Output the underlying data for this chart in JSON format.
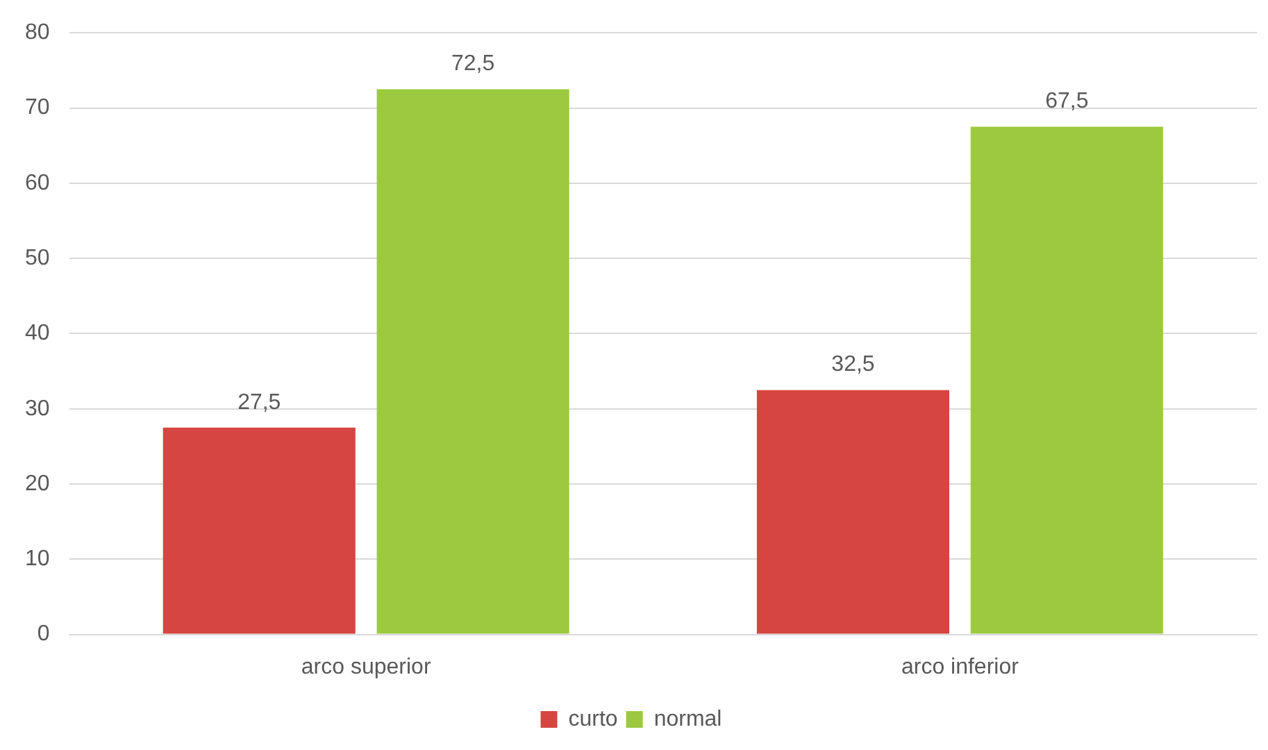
{
  "chart_data": {
    "type": "bar",
    "categories": [
      "arco superior",
      "arco inferior"
    ],
    "series": [
      {
        "name": "curto",
        "color": "#d64541",
        "values": [
          27.5,
          32.5
        ],
        "value_labels": [
          "27,5",
          "32,5"
        ]
      },
      {
        "name": "normal",
        "color": "#9cc93f",
        "values": [
          72.5,
          67.5
        ],
        "value_labels": [
          "72,5",
          "67,5"
        ]
      }
    ],
    "ylim": [
      0,
      80
    ],
    "yticks": [
      0,
      10,
      20,
      30,
      40,
      50,
      60,
      70,
      80
    ],
    "grid": "y",
    "legend": "bottom"
  }
}
